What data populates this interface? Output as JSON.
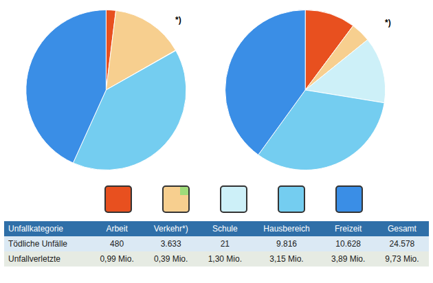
{
  "chart_data": [
    {
      "type": "pie",
      "values": [
        480,
        3633,
        21,
        9816,
        10628
      ],
      "colors": [
        "#e8501f",
        "#f7cf8f",
        "#cdf0f8",
        "#74cdf0",
        "#3a8ee6"
      ],
      "data_labels": false
    },
    {
      "type": "pie",
      "values": [
        0.99,
        0.39,
        1.3,
        3.15,
        3.89
      ],
      "colors": [
        "#e8501f",
        "#f7cf8f",
        "#cdf0f8",
        "#74cdf0",
        "#3a8ee6"
      ],
      "data_labels": false
    }
  ],
  "footnote_mark": "*)",
  "table": {
    "header": [
      "Unfallkategorie",
      "Arbeit",
      "Verkehr*)",
      "Schule",
      "Hausbereich",
      "Freizeit",
      "Gesamt"
    ],
    "rows": [
      [
        "Tödliche Unfälle",
        "480",
        "3.633",
        "21",
        "9.816",
        "10.628",
        "24.578"
      ],
      [
        "Unfallverletzte",
        "0,99 Mio.",
        "0,39 Mio.",
        "1,30 Mio.",
        "3,15 Mio.",
        "3,89 Mio.",
        "9,73 Mio."
      ]
    ]
  }
}
